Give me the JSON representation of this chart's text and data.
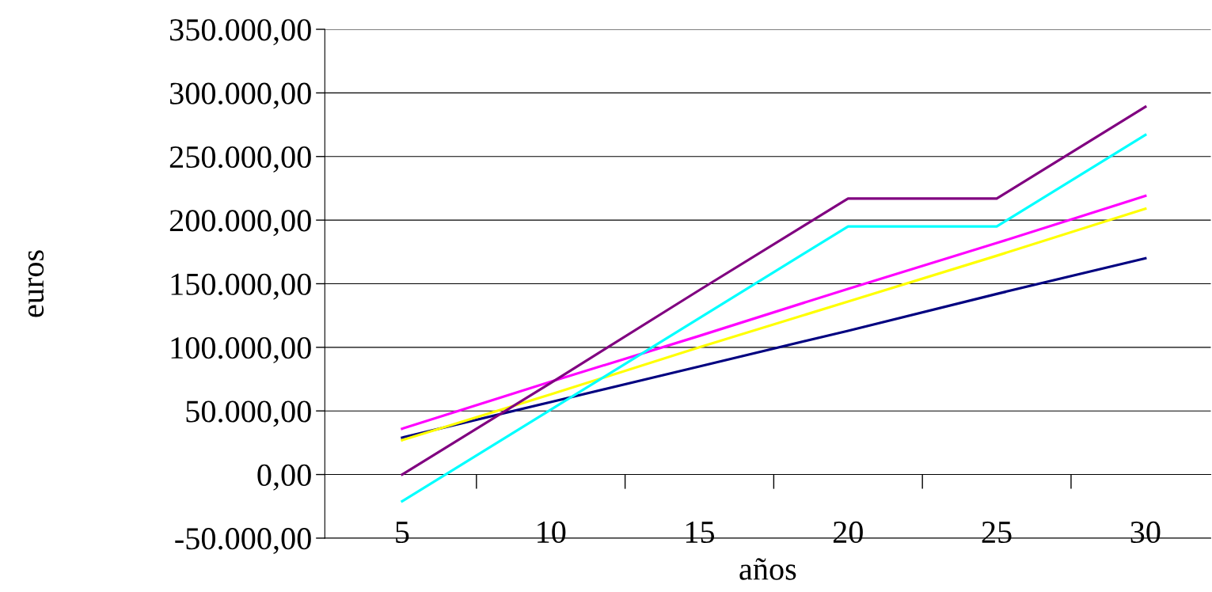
{
  "chart_data": {
    "type": "line",
    "xlabel": "años",
    "ylabel": "euros",
    "categories": [
      "5",
      "10",
      "15",
      "20",
      "25",
      "30"
    ],
    "series": [
      {
        "color": "#000080",
        "values": [
          29000,
          57000,
          85000,
          113000,
          142000,
          170000
        ]
      },
      {
        "color": "#ffff00",
        "values": [
          27000,
          63000,
          100000,
          136000,
          172000,
          209000
        ]
      },
      {
        "color": "#ff00ff",
        "values": [
          36000,
          73000,
          109000,
          146000,
          182000,
          219000
        ]
      },
      {
        "color": "#800080",
        "values": [
          0,
          72000,
          145000,
          217000,
          217000,
          289000
        ]
      },
      {
        "color": "#00ffff",
        "values": [
          -21000,
          51000,
          123000,
          195000,
          195000,
          267000
        ]
      }
    ],
    "ylim": [
      -50000,
      350000
    ],
    "yticks": [
      {
        "value": -50000,
        "label": "-50.000,00"
      },
      {
        "value": 0,
        "label": "0,00"
      },
      {
        "value": 50000,
        "label": "50.000,00"
      },
      {
        "value": 100000,
        "label": "100.000,00"
      },
      {
        "value": 150000,
        "label": "150.000,00"
      },
      {
        "value": 200000,
        "label": "200.000,00"
      },
      {
        "value": 250000,
        "label": "250.000,00"
      },
      {
        "value": 300000,
        "label": "300.000,00"
      },
      {
        "value": 350000,
        "label": "350.000,00"
      }
    ],
    "grid": "y",
    "marker": "none",
    "line_style": "solid"
  }
}
